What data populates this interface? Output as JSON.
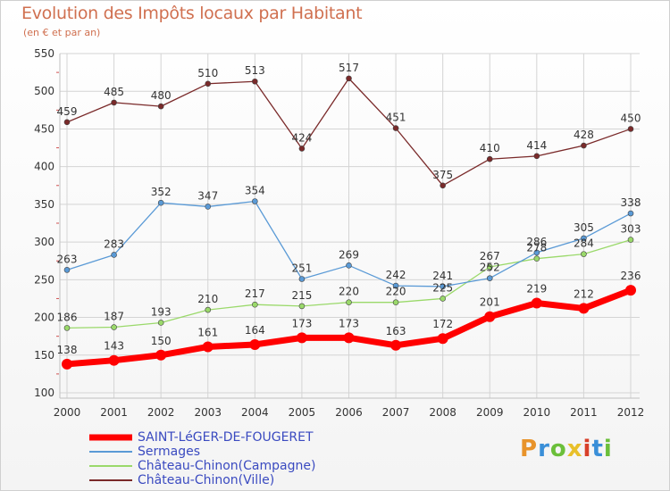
{
  "header": {
    "title": "Evolution des Impôts locaux par Habitant",
    "subtitle": "(en € et par an)"
  },
  "brand": {
    "letters": [
      "P",
      "r",
      "o",
      "x",
      "i",
      "t",
      "i"
    ],
    "colors": [
      "#e8932a",
      "#3a8fd8",
      "#6bbf3a",
      "#e8c02a",
      "#d8402a",
      "#3a8fd8",
      "#6bbf3a"
    ]
  },
  "chart_data": {
    "type": "line",
    "x": [
      "2000",
      "2001",
      "2002",
      "2003",
      "2004",
      "2005",
      "2006",
      "2007",
      "2008",
      "2009",
      "2010",
      "2011",
      "2012"
    ],
    "ylim": [
      100,
      550
    ],
    "yticks": [
      100,
      150,
      200,
      250,
      300,
      350,
      400,
      450,
      500,
      550
    ],
    "grid": true,
    "legend": "bottom-left",
    "series": [
      {
        "name": "SAINT-LéGER-DE-FOUGERET",
        "values": [
          138,
          143,
          150,
          161,
          164,
          173,
          173,
          163,
          172,
          201,
          219,
          212,
          236
        ],
        "color": "#ff0000",
        "line_width": 7,
        "marker_radius": 6,
        "label_offset": -12
      },
      {
        "name": "Sermages",
        "values": [
          263,
          283,
          352,
          347,
          354,
          251,
          269,
          242,
          241,
          252,
          286,
          305,
          338
        ],
        "color": "#5a9ad6",
        "line_width": 1.3,
        "marker_radius": 3,
        "label_offset": -8
      },
      {
        "name": "Château-Chinon(Campagne)",
        "values": [
          186,
          187,
          193,
          210,
          217,
          215,
          220,
          220,
          225,
          267,
          278,
          284,
          303
        ],
        "color": "#9ad96a",
        "line_width": 1.3,
        "marker_radius": 3,
        "label_offset": -8
      },
      {
        "name": "Château-Chinon(Ville)",
        "values": [
          459,
          485,
          480,
          510,
          513,
          424,
          517,
          451,
          375,
          410,
          414,
          428,
          450
        ],
        "color": "#7a2a2a",
        "line_width": 1.3,
        "marker_radius": 3,
        "label_offset": -8
      }
    ]
  }
}
